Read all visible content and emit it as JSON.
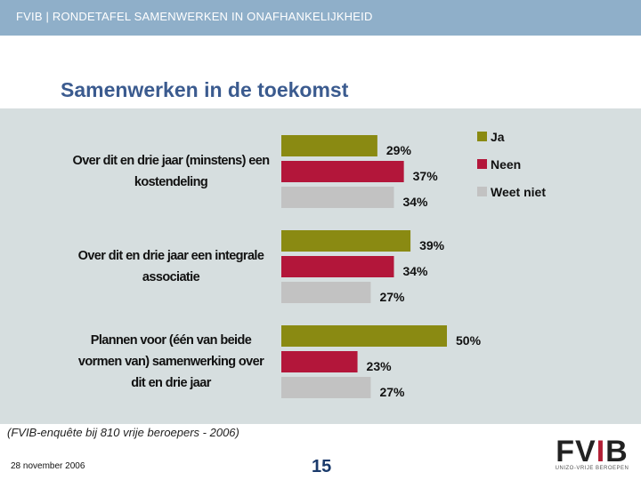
{
  "header": {
    "text": "FVIB  |  RONDETAFEL  SAMENWERKEN  IN  ONAFHANKELIJKHEID"
  },
  "title": "Samenwerken in de toekomst",
  "chart_data": {
    "type": "bar",
    "orientation": "horizontal",
    "categories": [
      "Over dit en drie jaar (minstens) een kostendeling",
      "Over dit en drie jaar een integrale associatie",
      "Plannen voor  (één van beide vormen van) samenwerking over dit en drie jaar"
    ],
    "category_lines": [
      [
        "Over dit en drie jaar (minstens) een",
        "kostendeling"
      ],
      [
        "Over dit en drie jaar een integrale",
        "associatie"
      ],
      [
        "Plannen voor  (één van beide",
        "vormen van) samenwerking over",
        "dit en drie jaar"
      ]
    ],
    "series": [
      {
        "name": "Ja",
        "color": "#8a8a12",
        "values": [
          29,
          39,
          50
        ],
        "labels": [
          "29%",
          "39%",
          "50%"
        ]
      },
      {
        "name": "Neen",
        "color": "#b3163a",
        "values": [
          37,
          34,
          23
        ],
        "labels": [
          "37%",
          "34%",
          "23%"
        ]
      },
      {
        "name": "Weet niet",
        "color": "#c2c2c2",
        "values": [
          34,
          27,
          27
        ],
        "labels": [
          "34%",
          "27%",
          "27%"
        ]
      }
    ],
    "legend_position": "top-right"
  },
  "footer": {
    "source": "(FVIB-enquête bij 810 vrije beroepers - 2006)",
    "date": "28 november 2006",
    "page": "15"
  },
  "logo": {
    "text": "FVIB",
    "subtitle": "UNIZO-VRIJE BEROEPEN"
  }
}
